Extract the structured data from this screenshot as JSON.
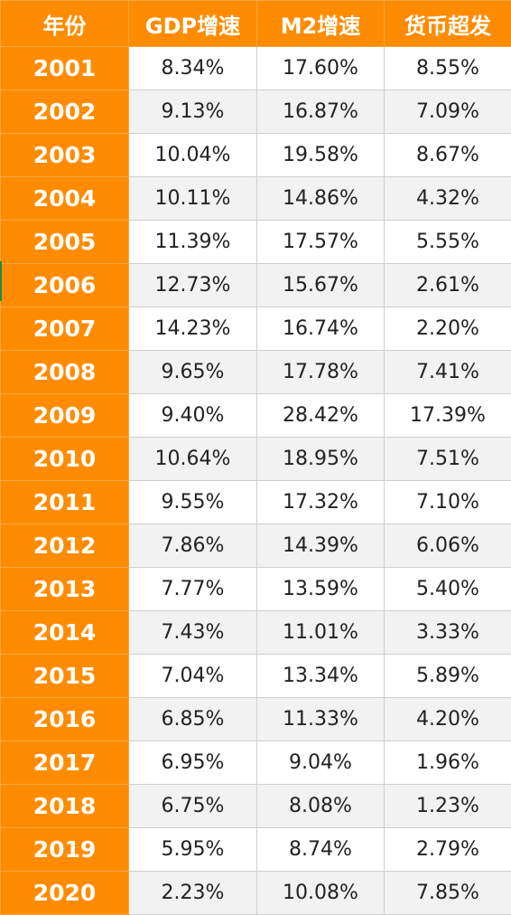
{
  "table": {
    "headers": [
      "年份",
      "GDP增速",
      "M2增速",
      "货币超发"
    ],
    "rows": [
      [
        "2001",
        "8.34%",
        "17.60%",
        "8.55%"
      ],
      [
        "2002",
        "9.13%",
        "16.87%",
        "7.09%"
      ],
      [
        "2003",
        "10.04%",
        "19.58%",
        "8.67%"
      ],
      [
        "2004",
        "10.11%",
        "14.86%",
        "4.32%"
      ],
      [
        "2005",
        "11.39%",
        "17.57%",
        "5.55%"
      ],
      [
        "2006",
        "12.73%",
        "15.67%",
        "2.61%"
      ],
      [
        "2007",
        "14.23%",
        "16.74%",
        "2.20%"
      ],
      [
        "2008",
        "9.65%",
        "17.78%",
        "7.41%"
      ],
      [
        "2009",
        "9.40%",
        "28.42%",
        "17.39%"
      ],
      [
        "2010",
        "10.64%",
        "18.95%",
        "7.51%"
      ],
      [
        "2011",
        "9.55%",
        "17.32%",
        "7.10%"
      ],
      [
        "2012",
        "7.86%",
        "14.39%",
        "6.06%"
      ],
      [
        "2013",
        "7.77%",
        "13.59%",
        "5.40%"
      ],
      [
        "2014",
        "7.43%",
        "11.01%",
        "3.33%"
      ],
      [
        "2015",
        "7.04%",
        "13.34%",
        "5.89%"
      ],
      [
        "2016",
        "6.85%",
        "11.33%",
        "4.20%"
      ],
      [
        "2017",
        "6.95%",
        "9.04%",
        "1.96%"
      ],
      [
        "2018",
        "6.75%",
        "8.08%",
        "1.23%"
      ],
      [
        "2019",
        "5.95%",
        "8.74%",
        "2.79%"
      ],
      [
        "2020",
        "2.23%",
        "10.08%",
        "7.85%"
      ]
    ]
  },
  "colors": {
    "header_bg": "#ff8c00",
    "header_text": "#ffffff",
    "row_alt_bg": "#f2f2f2",
    "grid_line": "#cfcfcf",
    "edge_mark": "#1f8f3a"
  }
}
